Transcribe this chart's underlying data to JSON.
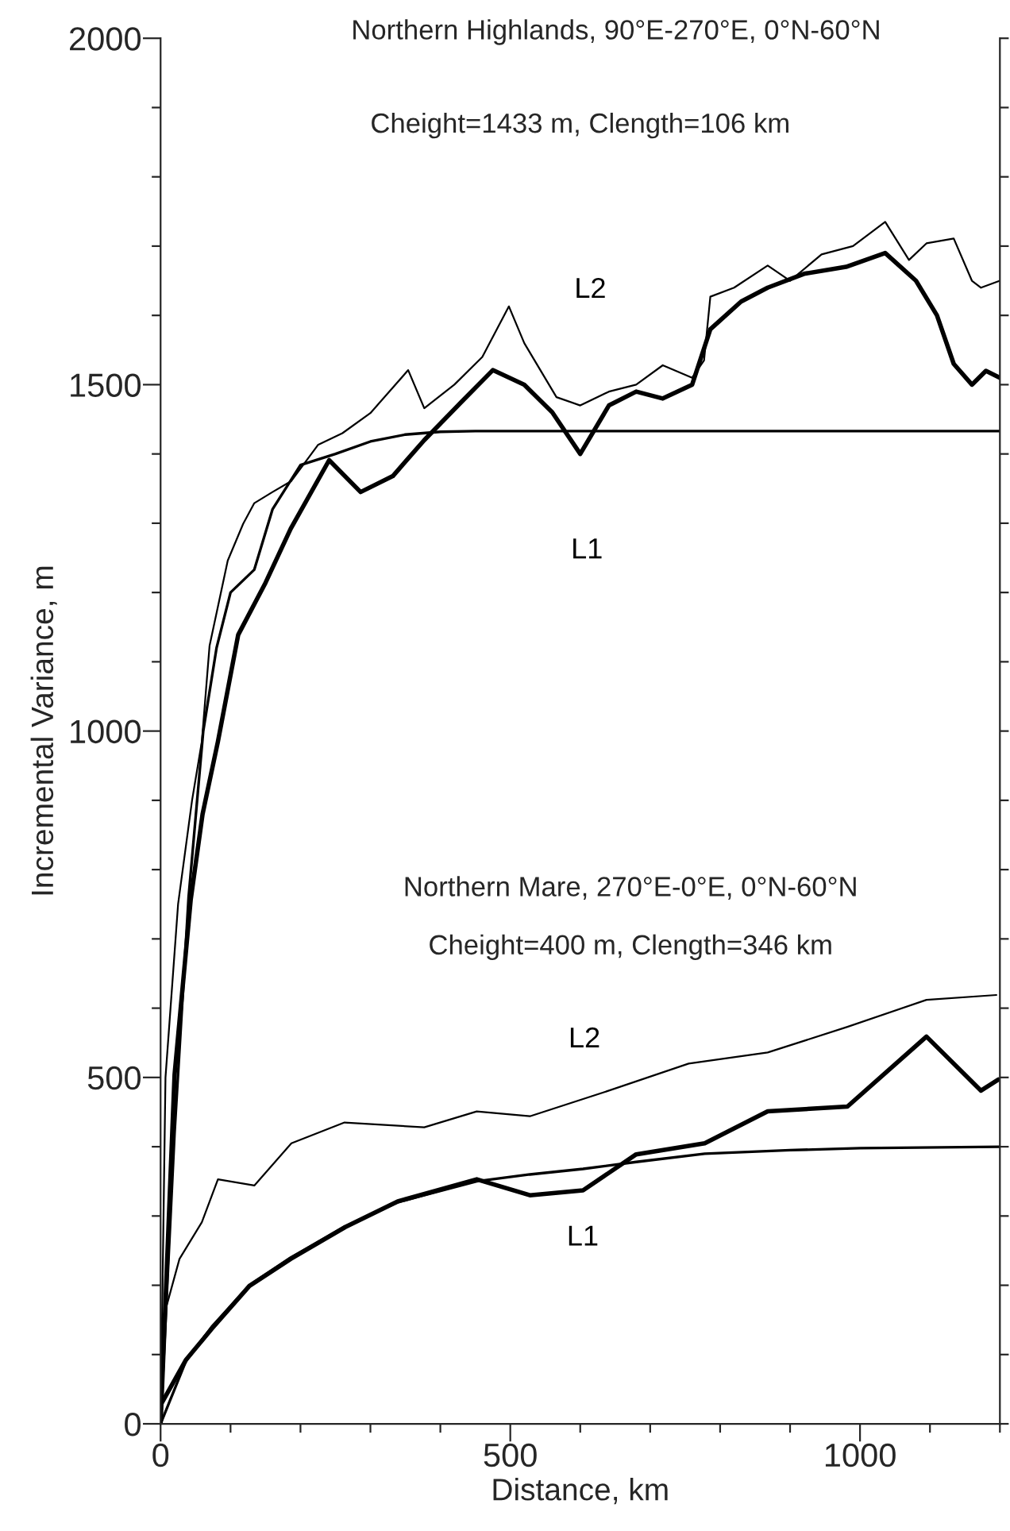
{
  "chart_data": {
    "type": "line",
    "title": "Northern Highlands, 90°E-270°E, 0°N-60°N",
    "subtitle": "Cheight=1433 m, Clength=106 km",
    "xlabel": "Distance, km",
    "ylabel": "Incremental Variance, m",
    "xlim": [
      0,
      1200
    ],
    "ylim": [
      0,
      2000
    ],
    "xticks": [
      0,
      {
        "value": 100,
        "label": null
      },
      {
        "value": 200,
        "label": null
      },
      {
        "value": 300,
        "label": null
      },
      {
        "value": 400,
        "label": null
      },
      500,
      {
        "value": 600,
        "label": null
      },
      {
        "value": 700,
        "label": null
      },
      {
        "value": 800,
        "label": null
      },
      {
        "value": 900,
        "label": null
      },
      1000,
      {
        "value": 1100,
        "label": null
      },
      {
        "value": 1200,
        "label": null
      }
    ],
    "yticks": [
      0,
      {
        "value": 100,
        "label": null
      },
      {
        "value": 200,
        "label": null
      },
      {
        "value": 300,
        "label": null
      },
      {
        "value": 400,
        "label": null
      },
      500,
      {
        "value": 600,
        "label": null
      },
      {
        "value": 700,
        "label": null
      },
      {
        "value": 800,
        "label": null
      },
      {
        "value": 900,
        "label": null
      },
      1000,
      {
        "value": 1100,
        "label": null
      },
      {
        "value": 1200,
        "label": null
      },
      {
        "value": 1300,
        "label": null
      },
      {
        "value": 1400,
        "label": null
      },
      1500,
      {
        "value": 1600,
        "label": null
      },
      {
        "value": 1700,
        "label": null
      },
      {
        "value": 1800,
        "label": null
      },
      {
        "value": 1900,
        "label": null
      },
      2000
    ],
    "grid": false,
    "legend": false,
    "marker": "none",
    "line_style": "solid",
    "series": [
      {
        "name": "L2",
        "color": "#000000",
        "x": [
          0,
          7,
          25,
          45,
          59,
          70,
          96,
          118,
          134,
          160,
          187,
          225,
          260,
          300,
          354,
          377,
          420,
          460,
          498,
          520,
          566,
          600,
          641,
          680,
          718,
          760,
          777,
          786,
          820,
          868,
          900,
          945,
          990,
          1036,
          1070,
          1095,
          1134,
          1160,
          1173,
          1200
        ],
        "values": [
          0,
          500,
          750,
          900,
          985,
          1123,
          1246,
          1299,
          1329,
          1345,
          1361,
          1413,
          1430,
          1459,
          1521,
          1466,
          1500,
          1540,
          1613,
          1560,
          1482,
          1470,
          1490,
          1500,
          1528,
          1510,
          1535,
          1627,
          1640,
          1672,
          1650,
          1688,
          1700,
          1735,
          1680,
          1704,
          1711,
          1650,
          1640,
          1650
        ]
      },
      {
        "name": "L1",
        "color": "#000000",
        "x": [
          0,
          20,
          43,
          60,
          82,
          111,
          150,
          186,
          241,
          286,
          332,
          377,
          430,
          475,
          520,
          560,
          600,
          641,
          680,
          718,
          760,
          786,
          830,
          868,
          920,
          980,
          1036,
          1080,
          1110,
          1134,
          1160,
          1180,
          1200
        ],
        "values": [
          0,
          504,
          756,
          880,
          985,
          1139,
          1214,
          1292,
          1391,
          1345,
          1368,
          1420,
          1475,
          1521,
          1500,
          1460,
          1400,
          1470,
          1490,
          1480,
          1500,
          1580,
          1620,
          1640,
          1660,
          1670,
          1690,
          1650,
          1600,
          1530,
          1500,
          1520,
          1510
        ]
      },
      {
        "color": "#000000",
        "x": [
          0,
          20,
          40,
          61,
          80,
          100,
          134,
          160,
          200,
          250,
          300,
          350,
          400,
          450,
          500,
          600,
          800,
          1000,
          1200
        ],
        "values": [
          0,
          420,
          760,
          1000,
          1120,
          1200,
          1233,
          1320,
          1384,
          1400,
          1418,
          1428,
          1432,
          1433,
          1433,
          1433,
          1433,
          1433,
          1433
        ]
      },
      {
        "name": "L2",
        "color": "#000000",
        "x": [
          0,
          2,
          27,
          59,
          82,
          134,
          187,
          263,
          377,
          452,
          528,
          641,
          755,
          868,
          982,
          1095,
          1195
        ],
        "values": [
          100,
          146,
          238,
          291,
          353,
          344,
          405,
          435,
          428,
          451,
          444,
          481,
          520,
          536,
          573,
          612,
          619
        ]
      },
      {
        "name": "L1",
        "color": "#000000",
        "x": [
          0,
          36,
          73,
          127,
          186,
          264,
          339,
          452,
          528,
          604,
          680,
          778,
          868,
          982,
          1095,
          1173,
          1198
        ],
        "values": [
          27,
          92,
          137,
          199,
          238,
          284,
          321,
          353,
          330,
          337,
          389,
          405,
          451,
          458,
          559,
          481,
          497
        ]
      },
      {
        "color": "#000000",
        "x": [
          0,
          36,
          73,
          127,
          186,
          264,
          339,
          452,
          528,
          604,
          680,
          778,
          900,
          1000,
          1200
        ],
        "values": [
          0,
          90,
          140,
          200,
          240,
          285,
          320,
          350,
          360,
          368,
          378,
          390,
          395,
          398,
          400
        ]
      }
    ],
    "annotations": [
      "Northern Mare, 270°E-0°E, 0°N-60°N",
      "Cheight=400 m, Clength=346 km"
    ]
  }
}
